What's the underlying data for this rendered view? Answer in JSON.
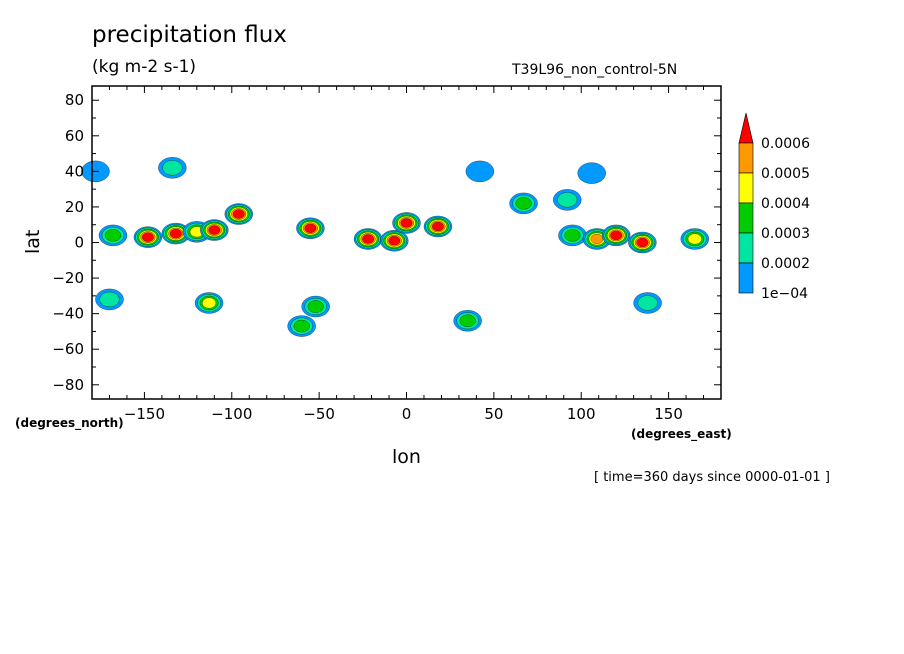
{
  "run_label": "T39L96_non_control-5N",
  "lon_units_note": "(degrees_north)",
  "lat_units_note": "(degrees_east)",
  "time_note": "[ time=360 days since 0000-01-01 ]",
  "chart_data": {
    "type": "contour",
    "title": "precipitation flux",
    "subtitle": "(kg m-2 s-1)",
    "xlabel": "lon",
    "ylabel": "lat",
    "xlim": [
      -180,
      180
    ],
    "ylim": [
      -88,
      88
    ],
    "xticks": [
      -150,
      -100,
      -50,
      0,
      50,
      100,
      150
    ],
    "yticks": [
      -80,
      -60,
      -40,
      -20,
      0,
      20,
      40,
      60,
      80
    ],
    "levels": [
      "1e-04",
      "0.0002",
      "0.0003",
      "0.0004",
      "0.0005",
      "0.0006"
    ],
    "level_colors": [
      "#0099ff",
      "#00e6a0",
      "#00cc00",
      "#ffff00",
      "#ff9900",
      "#ff0000"
    ],
    "blobs": [
      {
        "lon": -148,
        "lat": 3,
        "max_level": 5
      },
      {
        "lon": -132,
        "lat": 5,
        "max_level": 5
      },
      {
        "lon": -120,
        "lat": 6,
        "max_level": 3
      },
      {
        "lon": -110,
        "lat": 7,
        "max_level": 5
      },
      {
        "lon": -96,
        "lat": 16,
        "max_level": 5
      },
      {
        "lon": -168,
        "lat": 4,
        "max_level": 2
      },
      {
        "lon": -55,
        "lat": 8,
        "max_level": 5
      },
      {
        "lon": -22,
        "lat": 2,
        "max_level": 5
      },
      {
        "lon": -7,
        "lat": 1,
        "max_level": 5
      },
      {
        "lon": 0,
        "lat": 11,
        "max_level": 5
      },
      {
        "lon": 18,
        "lat": 9,
        "max_level": 5
      },
      {
        "lon": 67,
        "lat": 22,
        "max_level": 2
      },
      {
        "lon": 95,
        "lat": 4,
        "max_level": 2
      },
      {
        "lon": 109,
        "lat": 2,
        "max_level": 4
      },
      {
        "lon": 120,
        "lat": 4,
        "max_level": 5
      },
      {
        "lon": 135,
        "lat": 0,
        "max_level": 5
      },
      {
        "lon": 165,
        "lat": 2,
        "max_level": 3
      },
      {
        "lon": -113,
        "lat": -34,
        "max_level": 3
      },
      {
        "lon": -52,
        "lat": -36,
        "max_level": 2
      },
      {
        "lon": -60,
        "lat": -47,
        "max_level": 2
      },
      {
        "lon": 35,
        "lat": -44,
        "max_level": 2
      },
      {
        "lon": 138,
        "lat": -34,
        "max_level": 1
      },
      {
        "lon": -170,
        "lat": -32,
        "max_level": 1
      },
      {
        "lon": -134,
        "lat": 42,
        "max_level": 1
      },
      {
        "lon": 42,
        "lat": 40,
        "max_level": 0
      },
      {
        "lon": 92,
        "lat": 24,
        "max_level": 1
      },
      {
        "lon": 106,
        "lat": 39,
        "max_level": 0
      },
      {
        "lon": -178,
        "lat": 40,
        "max_level": 0
      }
    ]
  }
}
